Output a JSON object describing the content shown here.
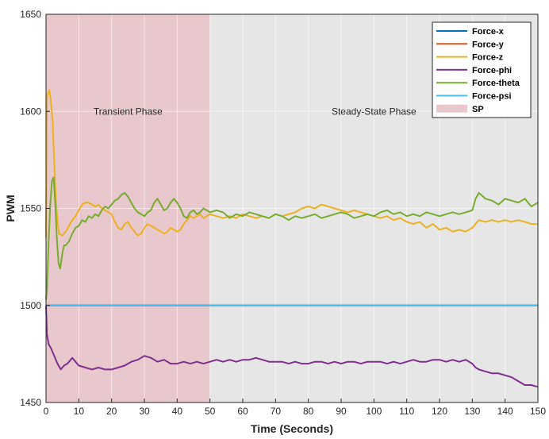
{
  "chart_data": {
    "type": "line",
    "title": "",
    "xlabel": "Time (Seconds)",
    "ylabel": "PWM",
    "xlim": [
      0,
      150
    ],
    "ylim": [
      1450,
      1650
    ],
    "xticks": [
      0,
      10,
      20,
      30,
      40,
      50,
      60,
      70,
      80,
      90,
      100,
      110,
      120,
      130,
      140,
      150
    ],
    "yticks": [
      1450,
      1500,
      1550,
      1600,
      1650
    ],
    "grid": true,
    "legend_position": "top-right",
    "shaded_regions": [
      {
        "name": "SP",
        "x_range": [
          0,
          50
        ],
        "color": "#e8c8cc"
      },
      {
        "name": "",
        "x_range": [
          50,
          150
        ],
        "color": "#e6e6e6"
      }
    ],
    "annotations": [
      {
        "text": "Transient Phase",
        "x": 25,
        "y": 1600
      },
      {
        "text": "Steady-State Phase",
        "x": 100,
        "y": 1600
      }
    ],
    "series": [
      {
        "name": "Force-x",
        "color": "#0072bd",
        "x": [
          0,
          150
        ],
        "y": [
          1500,
          1500
        ]
      },
      {
        "name": "Force-y",
        "color": "#d95319",
        "x": [
          0,
          150
        ],
        "y": [
          1500,
          1500
        ]
      },
      {
        "name": "Force-z",
        "color": "#edb120",
        "x": [
          0,
          0.3,
          1,
          1.5,
          2,
          2.5,
          3,
          3.5,
          4,
          5,
          6,
          7,
          8,
          9,
          10,
          11,
          12,
          13,
          14,
          15,
          16,
          17,
          18,
          19,
          20,
          21,
          22,
          23,
          24,
          25,
          26,
          27,
          28,
          29,
          30,
          31,
          32,
          33,
          34,
          35,
          36,
          37,
          38,
          39,
          40,
          41,
          42,
          43,
          44,
          45,
          46,
          47,
          48,
          49,
          50,
          52,
          54,
          56,
          58,
          60,
          62,
          64,
          66,
          68,
          70,
          72,
          74,
          76,
          78,
          80,
          82,
          84,
          86,
          88,
          90,
          92,
          94,
          96,
          98,
          100,
          102,
          104,
          106,
          108,
          110,
          112,
          114,
          116,
          118,
          120,
          122,
          124,
          126,
          128,
          130,
          132,
          134,
          136,
          138,
          140,
          142,
          144,
          146,
          148,
          150
        ],
        "y": [
          1535,
          1608,
          1611,
          1605,
          1595,
          1575,
          1555,
          1543,
          1537,
          1536,
          1538,
          1541,
          1544,
          1546,
          1549,
          1552,
          1553,
          1553,
          1552,
          1551,
          1552,
          1550,
          1549,
          1548,
          1547,
          1543,
          1540,
          1539,
          1542,
          1543,
          1540,
          1538,
          1536,
          1537,
          1540,
          1542,
          1541,
          1540,
          1539,
          1538,
          1537,
          1538,
          1540,
          1539,
          1538,
          1539,
          1542,
          1544,
          1546,
          1545,
          1546,
          1547,
          1545,
          1546,
          1547,
          1546,
          1545,
          1546,
          1545,
          1547,
          1546,
          1545,
          1546,
          1545,
          1547,
          1546,
          1547,
          1548,
          1550,
          1551,
          1550,
          1552,
          1551,
          1550,
          1549,
          1548,
          1549,
          1548,
          1547,
          1546,
          1545,
          1546,
          1544,
          1545,
          1543,
          1542,
          1543,
          1540,
          1542,
          1539,
          1540,
          1538,
          1539,
          1538,
          1540,
          1544,
          1543,
          1544,
          1543,
          1544,
          1543,
          1544,
          1543,
          1542,
          1542
        ]
      },
      {
        "name": "Force-phi",
        "color": "#7e2f8e",
        "x": [
          0,
          0.3,
          0.8,
          1.5,
          2.5,
          3.5,
          4.5,
          5.5,
          6.5,
          8,
          9,
          10,
          12,
          14,
          16,
          18,
          20,
          22,
          24,
          26,
          28,
          30,
          32,
          34,
          36,
          38,
          40,
          42,
          44,
          46,
          48,
          50,
          52,
          54,
          56,
          58,
          60,
          62,
          64,
          66,
          68,
          70,
          72,
          74,
          76,
          78,
          80,
          82,
          84,
          86,
          88,
          90,
          92,
          94,
          96,
          98,
          100,
          102,
          104,
          106,
          108,
          110,
          112,
          114,
          116,
          118,
          120,
          122,
          124,
          126,
          128,
          130,
          131,
          132,
          134,
          136,
          138,
          140,
          142,
          144,
          146,
          148,
          150
        ],
        "y": [
          1500,
          1485,
          1480,
          1478,
          1474,
          1470,
          1467,
          1469,
          1470,
          1473,
          1471,
          1469,
          1468,
          1467,
          1468,
          1467,
          1467,
          1468,
          1469,
          1471,
          1472,
          1474,
          1473,
          1471,
          1472,
          1470,
          1470,
          1471,
          1470,
          1471,
          1470,
          1471,
          1472,
          1471,
          1472,
          1471,
          1472,
          1472,
          1473,
          1472,
          1471,
          1471,
          1471,
          1470,
          1471,
          1470,
          1470,
          1471,
          1471,
          1470,
          1471,
          1470,
          1471,
          1471,
          1470,
          1471,
          1471,
          1471,
          1470,
          1471,
          1470,
          1471,
          1472,
          1471,
          1471,
          1472,
          1472,
          1471,
          1472,
          1471,
          1472,
          1470,
          1468,
          1467,
          1466,
          1465,
          1465,
          1464,
          1463,
          1461,
          1459,
          1459,
          1458
        ]
      },
      {
        "name": "Force-theta",
        "color": "#77ac30",
        "x": [
          0,
          0.3,
          0.8,
          1.3,
          1.8,
          2.3,
          2.8,
          3.3,
          3.8,
          4.3,
          5,
          5.5,
          6,
          7,
          8,
          9,
          10,
          11,
          12,
          13,
          14,
          15,
          16,
          17,
          18,
          19,
          20,
          21,
          22,
          23,
          24,
          25,
          26,
          27,
          28,
          29,
          30,
          31,
          32,
          33,
          34,
          35,
          36,
          37,
          38,
          39,
          40,
          41,
          42,
          43,
          44,
          45,
          46,
          47,
          48,
          49,
          50,
          52,
          54,
          56,
          58,
          60,
          62,
          64,
          66,
          68,
          70,
          72,
          74,
          76,
          78,
          80,
          82,
          84,
          86,
          88,
          90,
          92,
          94,
          96,
          98,
          100,
          102,
          104,
          106,
          108,
          110,
          112,
          114,
          116,
          118,
          120,
          122,
          124,
          126,
          128,
          130,
          131,
          132,
          134,
          136,
          138,
          140,
          142,
          144,
          146,
          148,
          150
        ],
        "y": [
          1503,
          1508,
          1533,
          1552,
          1564,
          1566,
          1553,
          1535,
          1522,
          1519,
          1527,
          1531,
          1531,
          1533,
          1537,
          1540,
          1541,
          1544,
          1543,
          1546,
          1545,
          1547,
          1546,
          1549,
          1551,
          1550,
          1552,
          1554,
          1555,
          1557,
          1558,
          1556,
          1553,
          1550,
          1548,
          1547,
          1546,
          1548,
          1549,
          1553,
          1555,
          1552,
          1549,
          1550,
          1553,
          1555,
          1553,
          1550,
          1546,
          1545,
          1548,
          1549,
          1547,
          1548,
          1550,
          1549,
          1548,
          1549,
          1548,
          1545,
          1547,
          1546,
          1548,
          1547,
          1546,
          1545,
          1547,
          1546,
          1544,
          1546,
          1545,
          1546,
          1547,
          1545,
          1546,
          1547,
          1548,
          1547,
          1545,
          1546,
          1547,
          1546,
          1548,
          1549,
          1547,
          1548,
          1546,
          1547,
          1546,
          1548,
          1547,
          1546,
          1547,
          1548,
          1547,
          1548,
          1549,
          1555,
          1558,
          1555,
          1554,
          1552,
          1555,
          1554,
          1553,
          1555,
          1551,
          1553
        ]
      },
      {
        "name": "Force-psi",
        "color": "#4dbeee",
        "x": [
          0,
          150
        ],
        "y": [
          1500,
          1500
        ]
      }
    ],
    "legend_entries": [
      "Force-x",
      "Force-y",
      "Force-z",
      "Force-phi",
      "Force-theta",
      "Force-psi",
      "SP"
    ]
  }
}
